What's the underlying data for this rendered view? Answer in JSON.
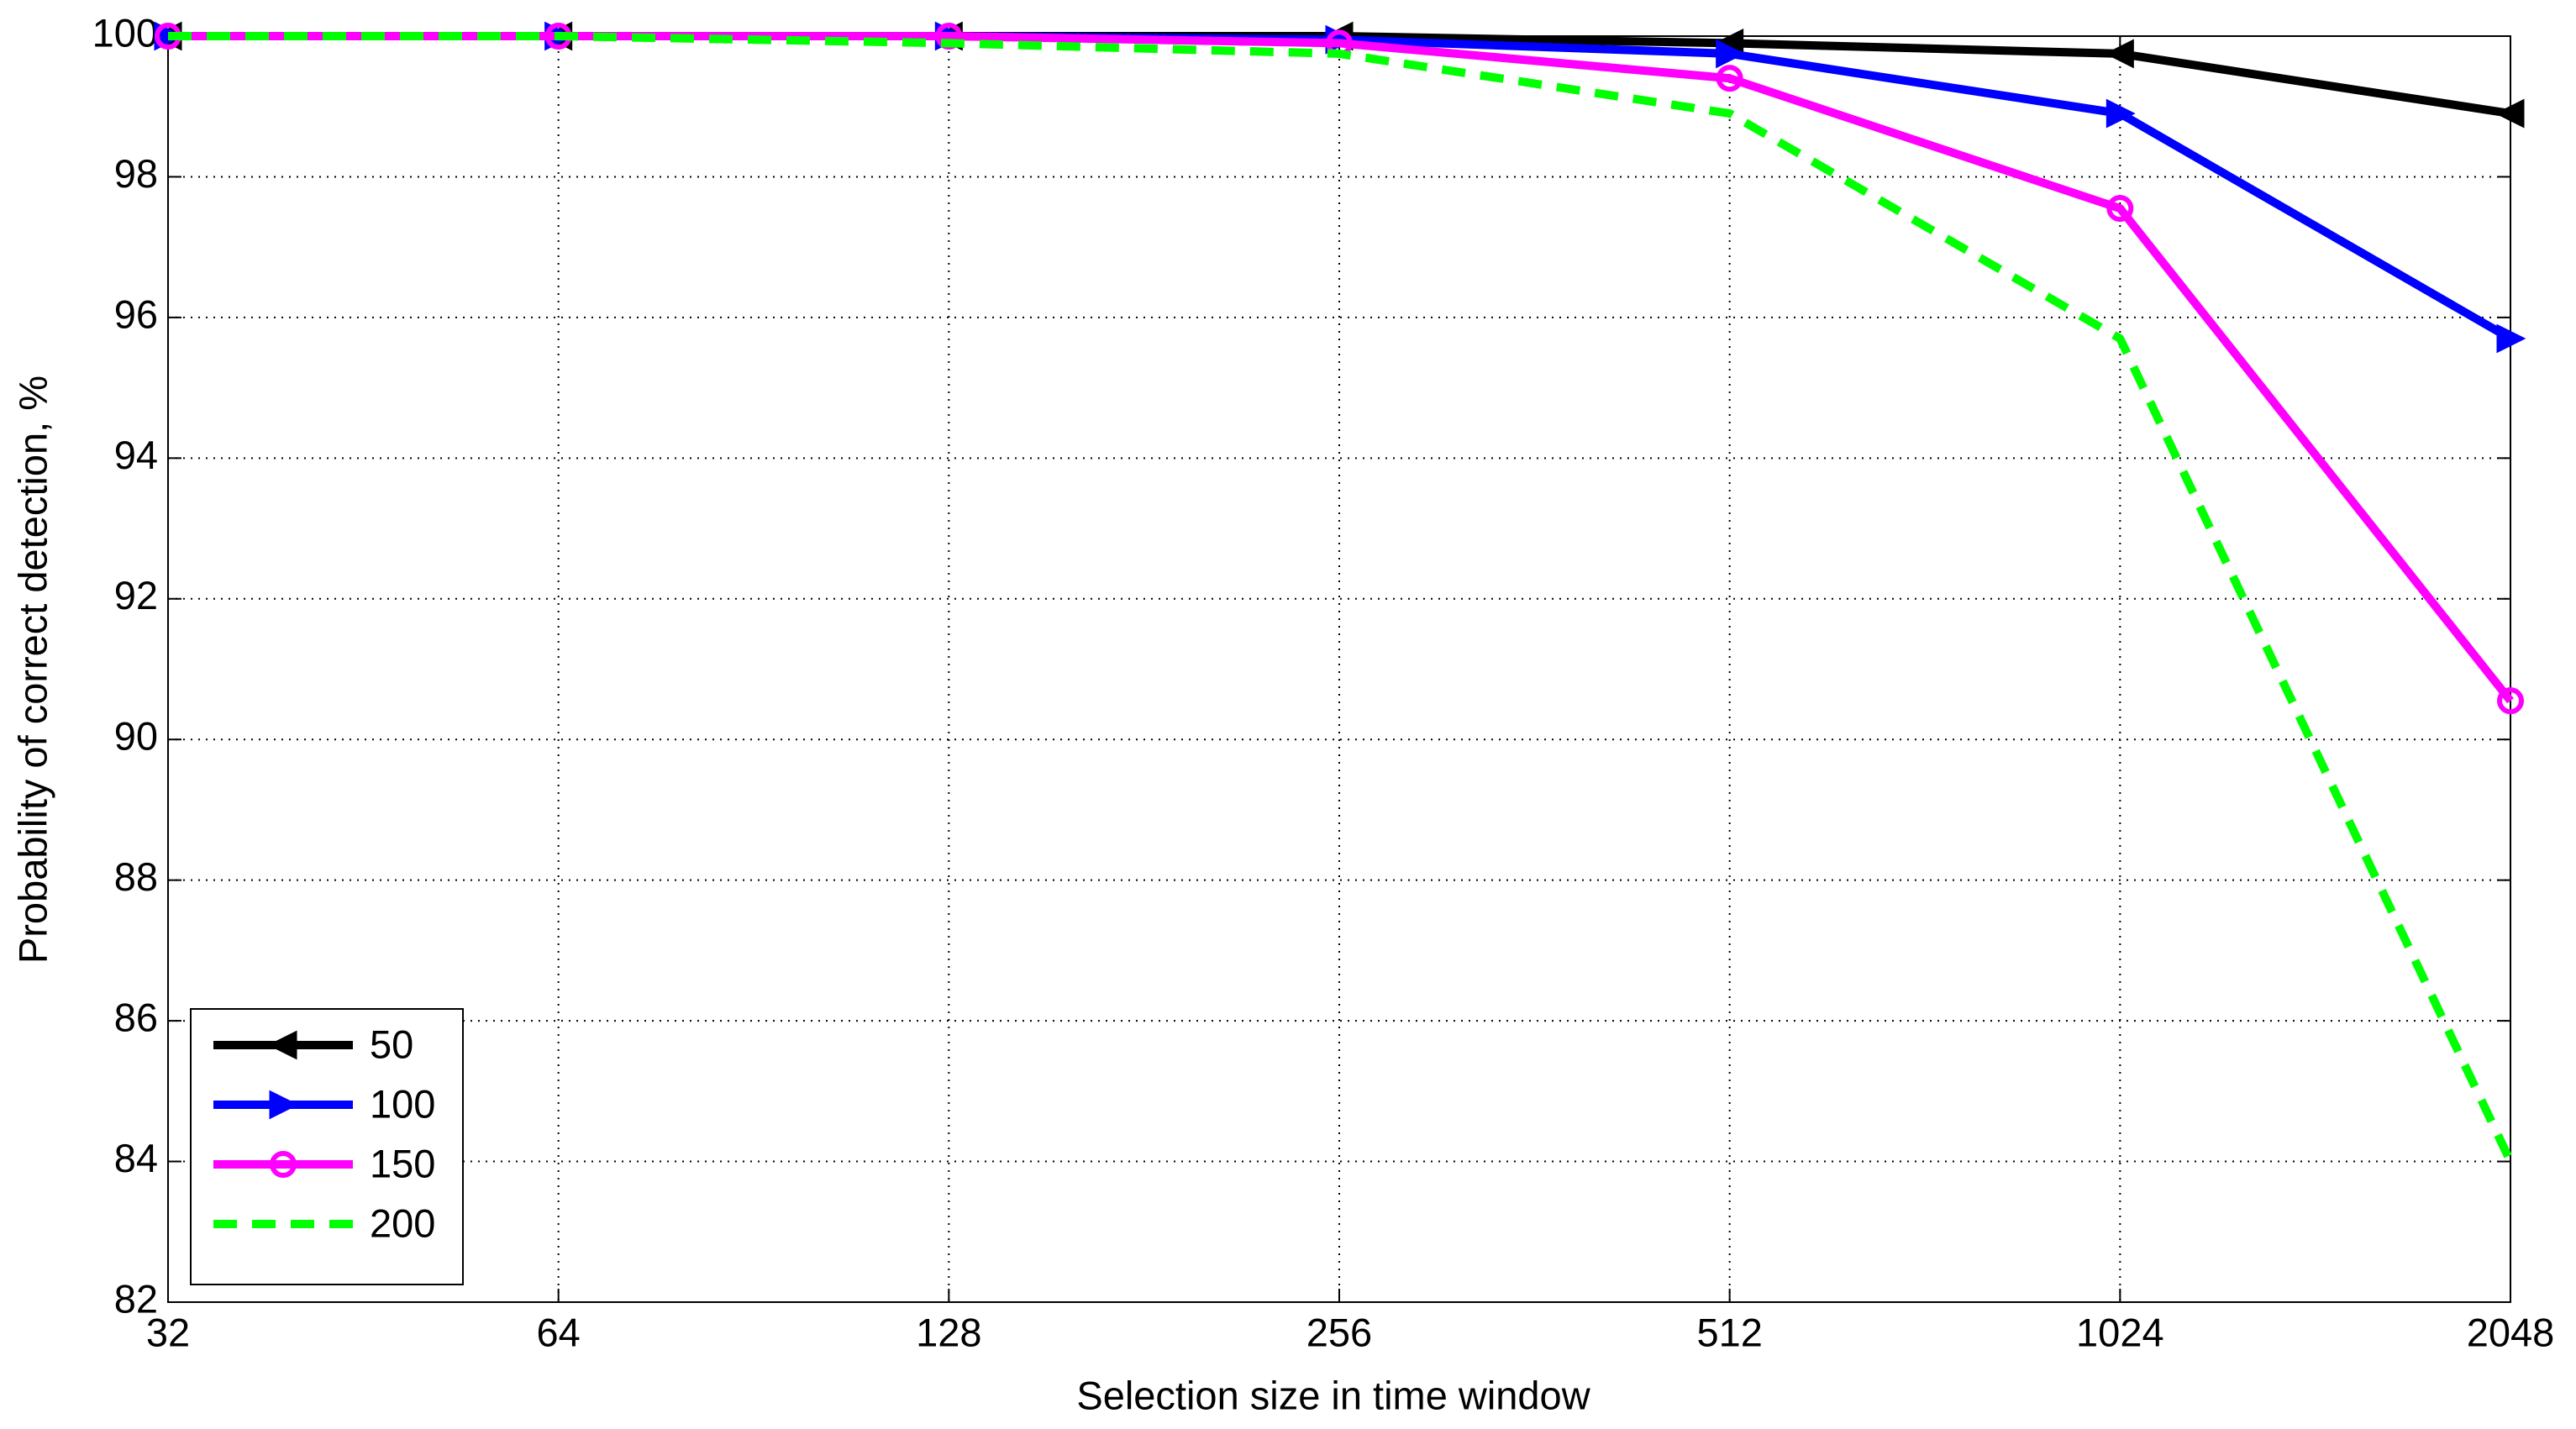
{
  "chart_data": {
    "type": "line",
    "xlabel": "Selection size in time window",
    "ylabel": "Probability of correct detection, %",
    "x": [
      32,
      64,
      128,
      256,
      512,
      1024,
      2048
    ],
    "xscale": "log",
    "xlim": [
      32,
      2048
    ],
    "xticks": [
      32,
      64,
      128,
      256,
      512,
      1024,
      2048
    ],
    "ylim": [
      82,
      100
    ],
    "yticks": [
      82,
      84,
      86,
      88,
      90,
      92,
      94,
      96,
      98,
      100
    ],
    "grid": true,
    "legend": "lower left",
    "series": [
      {
        "name": "50",
        "color": "#000000",
        "marker": "triangle-left",
        "linestyle": "solid",
        "values": [
          100,
          100,
          100,
          100,
          99.9,
          99.75,
          98.9
        ]
      },
      {
        "name": "100",
        "color": "#0000ff",
        "marker": "triangle-right",
        "linestyle": "solid",
        "values": [
          100,
          100,
          100,
          99.95,
          99.75,
          98.9,
          95.7
        ]
      },
      {
        "name": "150",
        "color": "#ff00ff",
        "marker": "circle",
        "linestyle": "solid",
        "values": [
          100,
          100,
          100,
          99.9,
          99.4,
          97.55,
          90.55
        ]
      },
      {
        "name": "200",
        "color": "#00ff00",
        "marker": "none",
        "linestyle": "dashed",
        "values": [
          100,
          100,
          99.9,
          99.75,
          98.9,
          95.7,
          84
        ]
      }
    ]
  }
}
